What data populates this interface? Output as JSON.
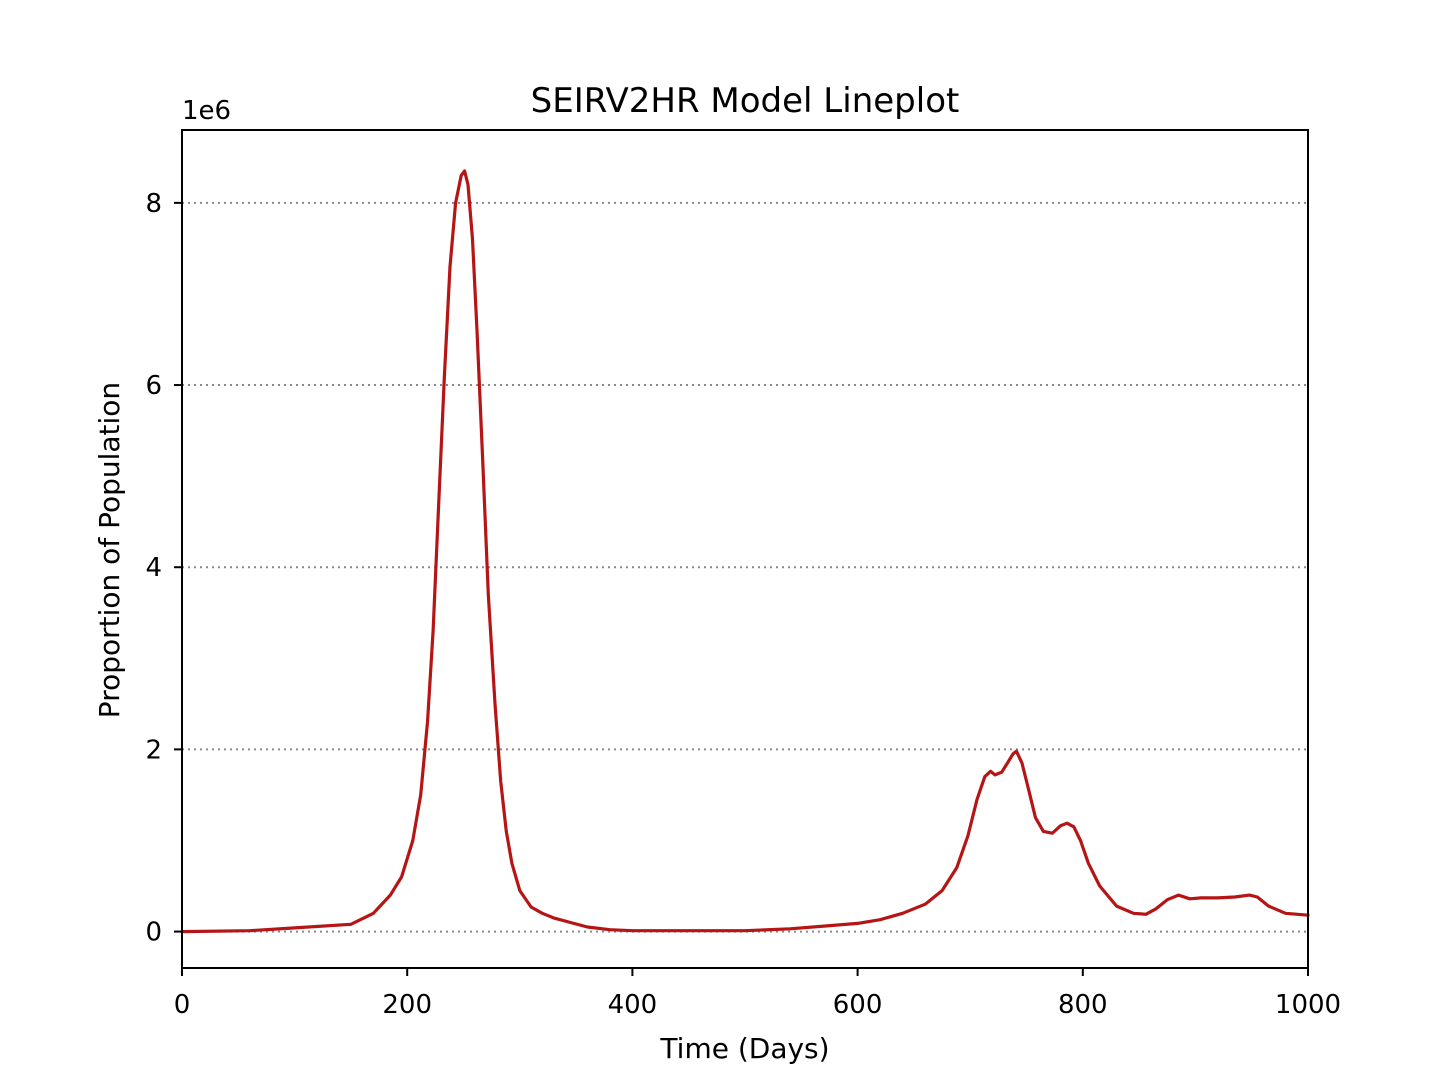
{
  "chart_data": {
    "type": "line",
    "title": "SEIRV2HR Model Lineplot",
    "xlabel": "Time (Days)",
    "ylabel": "Proportion of Population",
    "y_scale_label": "1e6",
    "xlim": [
      0,
      1000
    ],
    "ylim": [
      -0.4,
      8.8
    ],
    "y_scale": 1000000,
    "x_ticks": [
      0,
      200,
      400,
      600,
      800,
      1000
    ],
    "x_tick_labels": [
      "0",
      "200",
      "400",
      "600",
      "800",
      "1000"
    ],
    "y_ticks": [
      0,
      2,
      4,
      6,
      8
    ],
    "y_tick_labels": [
      "0",
      "2",
      "4",
      "6",
      "8"
    ],
    "grid": "y-dotted",
    "legend": "none",
    "colors": {
      "line": "#b51515",
      "grid": "#8a8a8a",
      "axis": "#000000"
    },
    "series": [
      {
        "x": [
          0,
          60,
          100,
          150,
          170,
          185,
          195,
          205,
          212,
          218,
          223,
          228,
          233,
          238,
          243,
          248,
          251,
          254,
          258,
          262,
          267,
          272,
          278,
          283,
          288,
          293,
          300,
          310,
          320,
          330,
          345,
          360,
          380,
          400,
          450,
          500,
          540,
          570,
          600,
          620,
          640,
          660,
          675,
          688,
          698,
          706,
          713,
          718,
          722,
          728,
          733,
          738,
          741,
          746,
          752,
          758,
          765,
          773,
          780,
          786,
          792,
          798,
          805,
          815,
          830,
          845,
          856,
          865,
          875,
          885,
          895,
          905,
          920,
          935,
          948,
          955,
          965,
          980,
          1000
        ],
        "y": [
          0.0,
          0.01,
          0.04,
          0.08,
          0.2,
          0.4,
          0.6,
          1.0,
          1.5,
          2.3,
          3.3,
          4.7,
          6.1,
          7.3,
          8.0,
          8.3,
          8.35,
          8.2,
          7.6,
          6.6,
          5.2,
          3.7,
          2.5,
          1.65,
          1.1,
          0.75,
          0.45,
          0.27,
          0.2,
          0.15,
          0.1,
          0.05,
          0.02,
          0.01,
          0.01,
          0.01,
          0.03,
          0.06,
          0.09,
          0.13,
          0.2,
          0.3,
          0.45,
          0.7,
          1.05,
          1.45,
          1.7,
          1.76,
          1.72,
          1.75,
          1.85,
          1.95,
          1.98,
          1.85,
          1.55,
          1.25,
          1.1,
          1.08,
          1.16,
          1.19,
          1.15,
          1.0,
          0.75,
          0.5,
          0.28,
          0.2,
          0.19,
          0.25,
          0.35,
          0.4,
          0.36,
          0.37,
          0.37,
          0.38,
          0.4,
          0.38,
          0.28,
          0.2,
          0.18
        ]
      }
    ]
  }
}
